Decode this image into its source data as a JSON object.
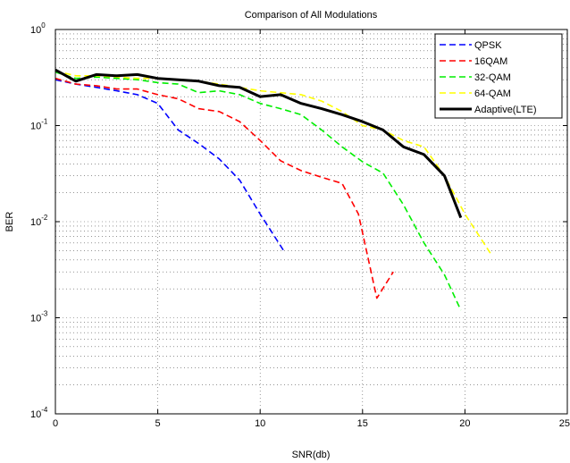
{
  "chart_data": {
    "type": "line",
    "title": "Comparison of All Modulations",
    "xlabel": "SNR(db)",
    "ylabel": "BER",
    "xlim": [
      0,
      25
    ],
    "ylim": [
      0.0001,
      1
    ],
    "yscale": "log",
    "grid": true,
    "legend_position": "top-right",
    "x_ticks": [
      "0",
      "5",
      "10",
      "15",
      "20",
      "25"
    ],
    "y_ticks": [
      {
        "base": "10",
        "exp": "0",
        "value": 1
      },
      {
        "base": "10",
        "exp": "-1",
        "value": 0.1
      },
      {
        "base": "10",
        "exp": "-2",
        "value": 0.01
      },
      {
        "base": "10",
        "exp": "-3",
        "value": 0.001
      },
      {
        "base": "10",
        "exp": "-4",
        "value": 0.0001
      }
    ],
    "series": [
      {
        "name": "QPSK",
        "color": "#0000ff",
        "style": "dashed",
        "points": [
          [
            0,
            0.3
          ],
          [
            1,
            0.27
          ],
          [
            2,
            0.25
          ],
          [
            3,
            0.23
          ],
          [
            4,
            0.21
          ],
          [
            5,
            0.17
          ],
          [
            6,
            0.09
          ],
          [
            7,
            0.065
          ],
          [
            8,
            0.045
          ],
          [
            9,
            0.027
          ],
          [
            10,
            0.012
          ],
          [
            11.2,
            0.0048
          ]
        ]
      },
      {
        "name": "16QAM",
        "color": "#ff0000",
        "style": "dashed",
        "points": [
          [
            0,
            0.31
          ],
          [
            1,
            0.27
          ],
          [
            2,
            0.26
          ],
          [
            3,
            0.24
          ],
          [
            4,
            0.24
          ],
          [
            5,
            0.21
          ],
          [
            6,
            0.19
          ],
          [
            7,
            0.15
          ],
          [
            8,
            0.14
          ],
          [
            9,
            0.11
          ],
          [
            10,
            0.07
          ],
          [
            11,
            0.043
          ],
          [
            12,
            0.034
          ],
          [
            13,
            0.029
          ],
          [
            14,
            0.025
          ],
          [
            14.8,
            0.012
          ],
          [
            15.7,
            0.0016
          ],
          [
            16.5,
            0.003
          ]
        ]
      },
      {
        "name": "32-QAM",
        "color": "#00ee00",
        "style": "dashed",
        "points": [
          [
            0,
            0.36
          ],
          [
            1,
            0.31
          ],
          [
            2,
            0.32
          ],
          [
            3,
            0.31
          ],
          [
            4,
            0.3
          ],
          [
            5,
            0.28
          ],
          [
            6,
            0.27
          ],
          [
            7,
            0.22
          ],
          [
            8,
            0.23
          ],
          [
            9,
            0.21
          ],
          [
            10,
            0.17
          ],
          [
            11,
            0.15
          ],
          [
            12,
            0.13
          ],
          [
            13,
            0.09
          ],
          [
            14,
            0.06
          ],
          [
            15,
            0.042
          ],
          [
            16,
            0.032
          ],
          [
            17,
            0.015
          ],
          [
            18,
            0.006
          ],
          [
            19,
            0.0028
          ],
          [
            19.8,
            0.0012
          ]
        ]
      },
      {
        "name": "64-QAM",
        "color": "#ffff00",
        "style": "dashed",
        "points": [
          [
            0,
            0.37
          ],
          [
            1,
            0.33
          ],
          [
            2,
            0.33
          ],
          [
            3,
            0.32
          ],
          [
            4,
            0.31
          ],
          [
            5,
            0.31
          ],
          [
            6,
            0.3
          ],
          [
            7,
            0.29
          ],
          [
            8,
            0.27
          ],
          [
            9,
            0.25
          ],
          [
            10,
            0.23
          ],
          [
            11,
            0.22
          ],
          [
            12,
            0.21
          ],
          [
            13,
            0.18
          ],
          [
            14,
            0.14
          ],
          [
            15,
            0.1
          ],
          [
            16,
            0.09
          ],
          [
            17,
            0.07
          ],
          [
            18,
            0.06
          ],
          [
            19,
            0.03
          ],
          [
            20,
            0.012
          ],
          [
            21.3,
            0.0045
          ]
        ]
      },
      {
        "name": "Adaptive(LTE)",
        "color": "#000000",
        "style": "solid",
        "points": [
          [
            0,
            0.38
          ],
          [
            1,
            0.29
          ],
          [
            2,
            0.34
          ],
          [
            3,
            0.33
          ],
          [
            4,
            0.34
          ],
          [
            5,
            0.31
          ],
          [
            6,
            0.3
          ],
          [
            7,
            0.29
          ],
          [
            8,
            0.26
          ],
          [
            9,
            0.25
          ],
          [
            10,
            0.2
          ],
          [
            11,
            0.21
          ],
          [
            12,
            0.17
          ],
          [
            13,
            0.15
          ],
          [
            14,
            0.13
          ],
          [
            15,
            0.11
          ],
          [
            16,
            0.09
          ],
          [
            17,
            0.06
          ],
          [
            18,
            0.05
          ],
          [
            19,
            0.03
          ],
          [
            19.8,
            0.011
          ]
        ]
      }
    ]
  }
}
